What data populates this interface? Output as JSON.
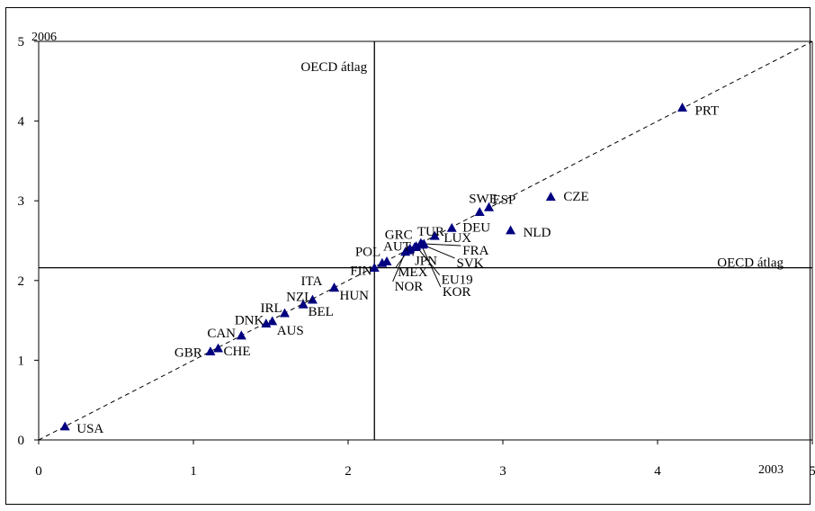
{
  "chart_data": {
    "type": "scatter",
    "title": "",
    "xlabel": "2003",
    "ylabel": "2006",
    "xlim": [
      0,
      5
    ],
    "ylim": [
      0,
      5
    ],
    "x_ticks": [
      "0",
      "1",
      "2",
      "3",
      "4",
      "5"
    ],
    "y_ticks": [
      "0",
      "1",
      "2",
      "3",
      "4",
      "5"
    ],
    "grid": false,
    "legend": "none",
    "marker": "triangle",
    "marker_color": "#000080",
    "diagonal_reference": true,
    "reference_lines": {
      "vertical": {
        "x": 2.17,
        "label": "OECD átlag"
      },
      "horizontal": {
        "y": 2.16,
        "label": "OECD átlag"
      }
    },
    "points": [
      {
        "label": "USA",
        "x": 0.17,
        "y": 0.17
      },
      {
        "label": "GBR",
        "x": 1.11,
        "y": 1.11
      },
      {
        "label": "CHE",
        "x": 1.16,
        "y": 1.15
      },
      {
        "label": "CAN",
        "x": 1.31,
        "y": 1.31
      },
      {
        "label": "DNK",
        "x": 1.47,
        "y": 1.46
      },
      {
        "label": "AUS",
        "x": 1.51,
        "y": 1.49
      },
      {
        "label": "IRL",
        "x": 1.59,
        "y": 1.59
      },
      {
        "label": "NZL",
        "x": 1.71,
        "y": 1.7
      },
      {
        "label": "BEL",
        "x": 1.77,
        "y": 1.76
      },
      {
        "label": "ITA",
        "x": 1.91,
        "y": 1.91
      },
      {
        "label": "HUN",
        "x": 1.91,
        "y": 1.91
      },
      {
        "label": "FIN",
        "x": 2.17,
        "y": 2.16
      },
      {
        "label": "POL",
        "x": 2.22,
        "y": 2.22
      },
      {
        "label": "AUT",
        "x": 2.25,
        "y": 2.24
      },
      {
        "label": "NOR",
        "x": 2.37,
        "y": 2.36
      },
      {
        "label": "MEX",
        "x": 2.39,
        "y": 2.38
      },
      {
        "label": "GRC",
        "x": 2.4,
        "y": 2.4
      },
      {
        "label": "JPN",
        "x": 2.43,
        "y": 2.42
      },
      {
        "label": "EU19",
        "x": 2.44,
        "y": 2.43
      },
      {
        "label": "TUR",
        "x": 2.47,
        "y": 2.47
      },
      {
        "label": "KOR",
        "x": 2.47,
        "y": 2.46
      },
      {
        "label": "SVK",
        "x": 2.48,
        "y": 2.45
      },
      {
        "label": "FRA",
        "x": 2.49,
        "y": 2.46
      },
      {
        "label": "LUX",
        "x": 2.56,
        "y": 2.56
      },
      {
        "label": "DEU",
        "x": 2.67,
        "y": 2.66
      },
      {
        "label": "SWE",
        "x": 2.85,
        "y": 2.86
      },
      {
        "label": "ESP",
        "x": 2.91,
        "y": 2.92
      },
      {
        "label": "NLD",
        "x": 3.05,
        "y": 2.63
      },
      {
        "label": "CZE",
        "x": 3.31,
        "y": 3.05
      },
      {
        "label": "PRT",
        "x": 4.16,
        "y": 4.17
      }
    ]
  }
}
